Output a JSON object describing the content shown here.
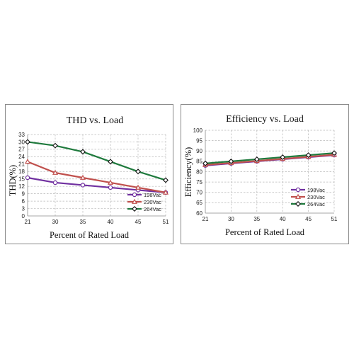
{
  "chart_data": [
    {
      "type": "line",
      "title": "THD vs. Load",
      "xlabel": "Percent of Rated Load",
      "ylabel": "THD(%)",
      "x": [
        21,
        30,
        35,
        40,
        45,
        51
      ],
      "ylim": [
        0,
        33
      ],
      "yticks": [
        0,
        3,
        6,
        9,
        12,
        15,
        18,
        21,
        24,
        27,
        30,
        33
      ],
      "grid": true,
      "legend": "lower-right",
      "series": [
        {
          "name": "198Vac",
          "color": "#7030a0",
          "marker": "circle",
          "values": [
            15.5,
            13.5,
            12.5,
            11.5,
            10.5,
            9.5
          ]
        },
        {
          "name": "230Vac",
          "color": "#c0504d",
          "marker": "triangle",
          "values": [
            22,
            17.5,
            15.5,
            13.5,
            11.5,
            9.5
          ]
        },
        {
          "name": "264Vac",
          "color": "#1f7a3d",
          "marker": "diamond",
          "values": [
            30,
            28.5,
            26,
            22,
            18,
            14.5
          ]
        }
      ]
    },
    {
      "type": "line",
      "title": "Efficiency vs. Load",
      "xlabel": "Percent of Rated Load",
      "ylabel": "Efficiency(%)",
      "x": [
        21,
        30,
        35,
        40,
        45,
        51
      ],
      "ylim": [
        60,
        100
      ],
      "yticks": [
        60,
        65,
        70,
        75,
        80,
        85,
        90,
        95,
        100
      ],
      "grid": true,
      "legend": "lower-right",
      "series": [
        {
          "name": "198Vac",
          "color": "#7030a0",
          "marker": "circle",
          "values": [
            83,
            84,
            85,
            86,
            87,
            88
          ]
        },
        {
          "name": "230Vac",
          "color": "#c0504d",
          "marker": "triangle",
          "values": [
            83.3,
            84.2,
            85.2,
            86.2,
            87.2,
            88.2
          ]
        },
        {
          "name": "264Vac",
          "color": "#1f7a3d",
          "marker": "diamond",
          "values": [
            84,
            85,
            86,
            87,
            88,
            89
          ]
        }
      ]
    }
  ]
}
